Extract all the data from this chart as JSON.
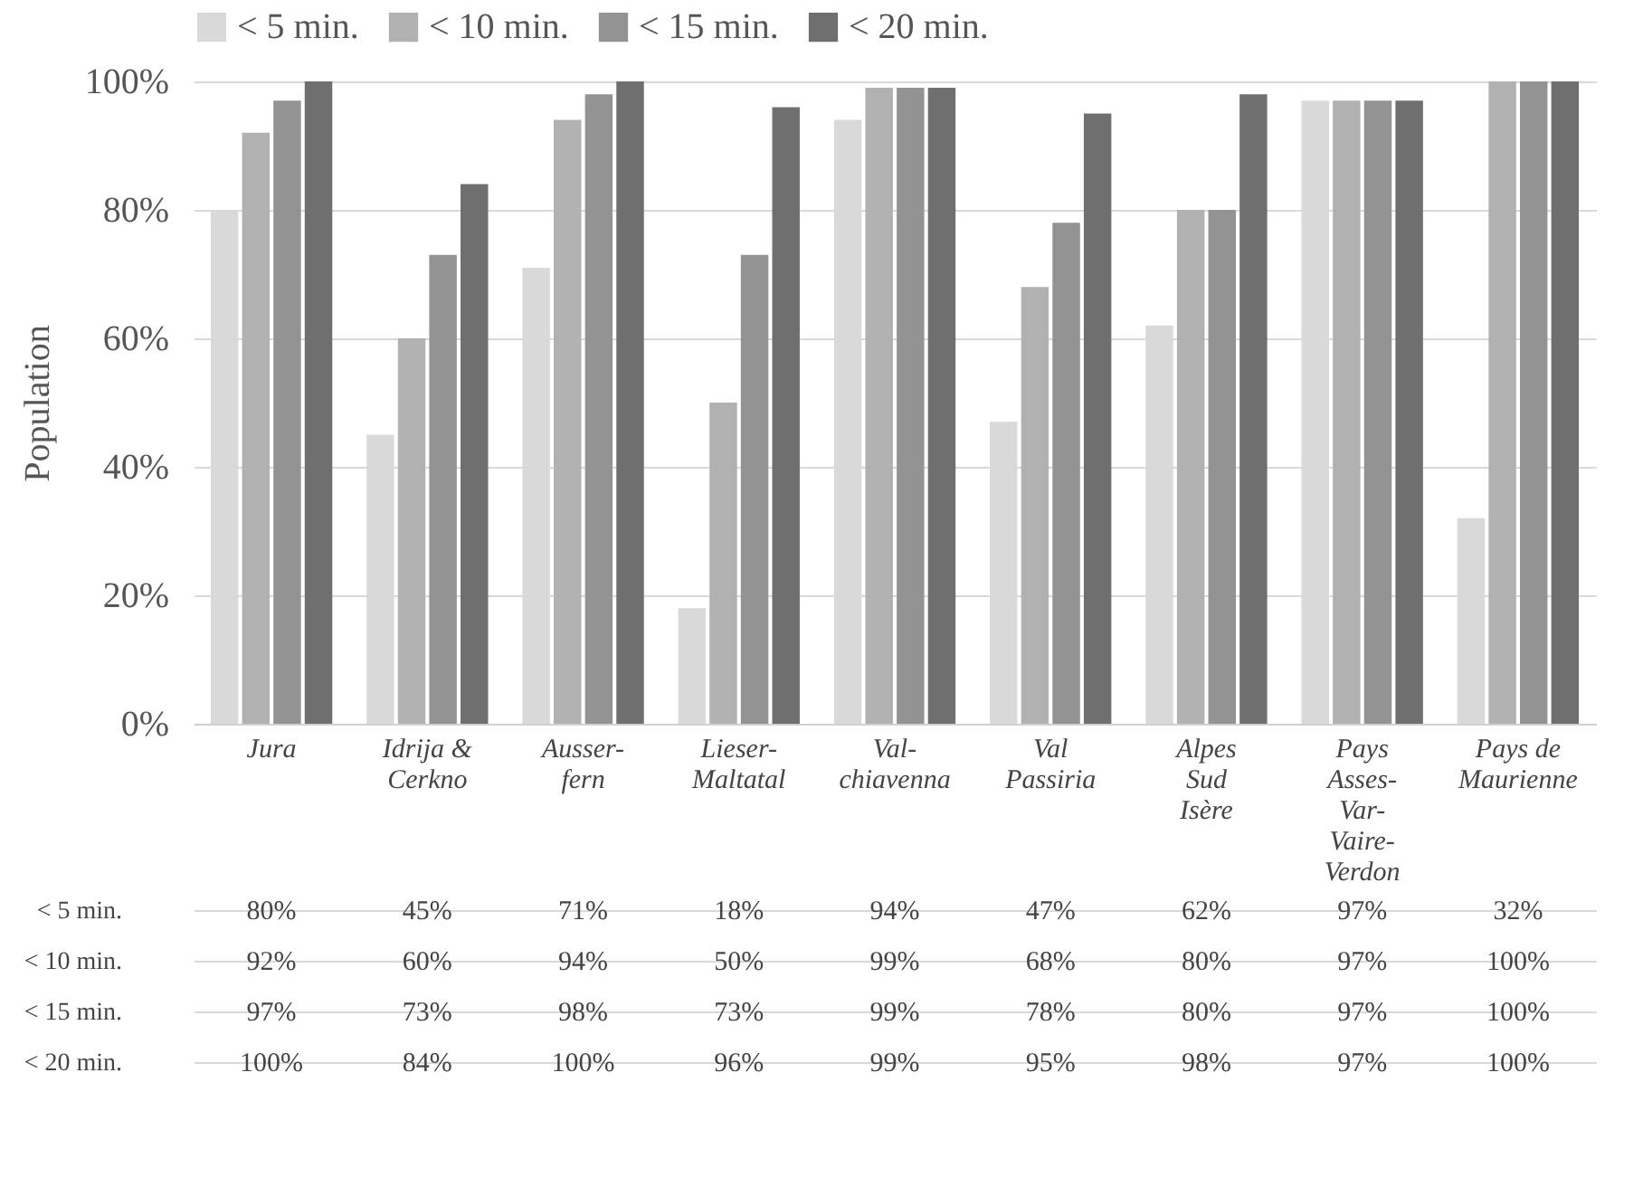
{
  "chart_data": {
    "type": "bar",
    "ylabel": "Population",
    "categories": [
      "Jura",
      "Idrija &\nCerkno",
      "Ausser-\nfern",
      "Lieser-\nMaltatal",
      "Val-\nchiavenna",
      "Val\nPassiria",
      "Alpes\nSud\nIsère",
      "Pays\nAsses-\nVar-\nVaire-\nVerdon",
      "Pays de\nMaurienne"
    ],
    "series": [
      {
        "name": "< 5 min.",
        "color": "#d9d9d9",
        "values": [
          80,
          45,
          71,
          18,
          94,
          47,
          62,
          97,
          32
        ],
        "value_labels": [
          "80%",
          "45%",
          "71%",
          "18%",
          "94%",
          "47%",
          "62%",
          "97%",
          "32%"
        ]
      },
      {
        "name": "< 10 min.",
        "color": "#b1b1b1",
        "values": [
          92,
          60,
          94,
          50,
          99,
          68,
          80,
          97,
          100
        ],
        "value_labels": [
          "92%",
          "60%",
          "94%",
          "50%",
          "99%",
          "68%",
          "80%",
          "97%",
          "100%"
        ]
      },
      {
        "name": "< 15 min.",
        "color": "#939393",
        "values": [
          97,
          73,
          98,
          73,
          99,
          78,
          80,
          97,
          100
        ],
        "value_labels": [
          "97%",
          "73%",
          "98%",
          "73%",
          "99%",
          "78%",
          "80%",
          "97%",
          "100%"
        ]
      },
      {
        "name": "< 20 min.",
        "color": "#6f6f6f",
        "values": [
          100,
          84,
          100,
          96,
          99,
          95,
          98,
          97,
          100
        ],
        "value_labels": [
          "100%",
          "84%",
          "100%",
          "96%",
          "99%",
          "95%",
          "98%",
          "97%",
          "100%"
        ]
      }
    ],
    "ylim": [
      0,
      100
    ],
    "yticks": [
      {
        "value": 0,
        "label": "0%"
      },
      {
        "value": 20,
        "label": "20%"
      },
      {
        "value": 40,
        "label": "40%"
      },
      {
        "value": 60,
        "label": "60%"
      },
      {
        "value": 80,
        "label": "80%"
      },
      {
        "value": 100,
        "label": "100%"
      }
    ],
    "grid": "y",
    "legend": "top"
  }
}
